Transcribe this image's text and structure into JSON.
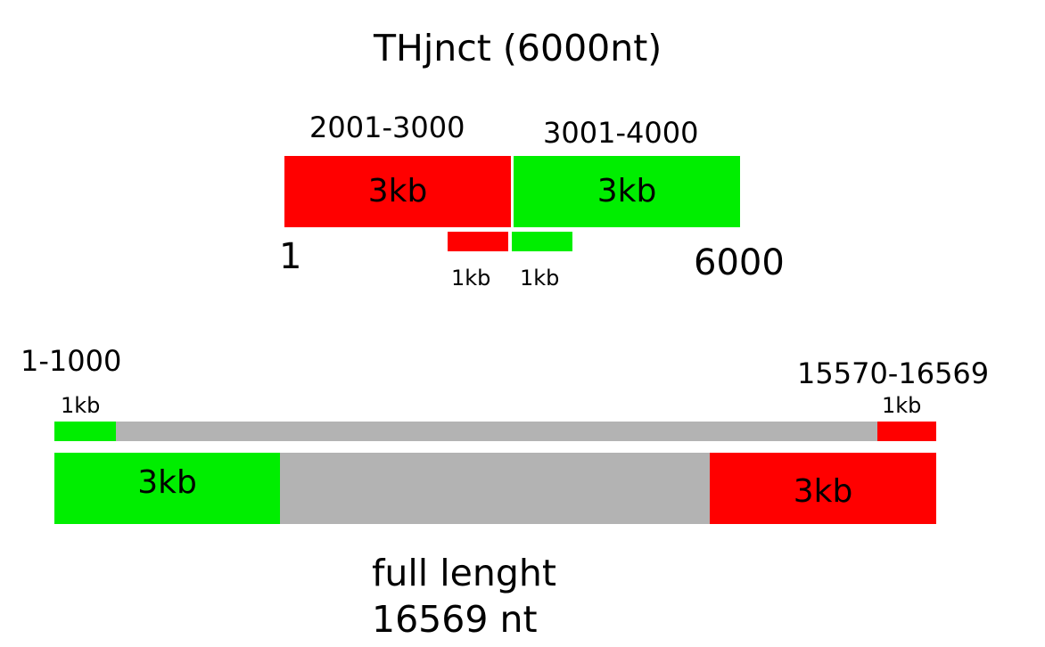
{
  "colors": {
    "red": "#ff0000",
    "green": "#00ee00",
    "gray": "#b3b3b3"
  },
  "top_diagram": {
    "title": "THjnct (6000nt)",
    "range_left": "2001-3000",
    "range_right": "3001-4000",
    "block_left_label": "3kb",
    "block_right_label": "3kb",
    "start_label": "1",
    "end_label": "6000",
    "small_left_label": "1kb",
    "small_right_label": "1kb"
  },
  "bottom_diagram": {
    "range_left": "1-1000",
    "range_right": "15570-16569",
    "small_left_label": "1kb",
    "small_right_label": "1kb",
    "block_left_label": "3kb",
    "block_right_label": "3kb",
    "caption_line1": "full lenght",
    "caption_line2": "16569 nt"
  }
}
